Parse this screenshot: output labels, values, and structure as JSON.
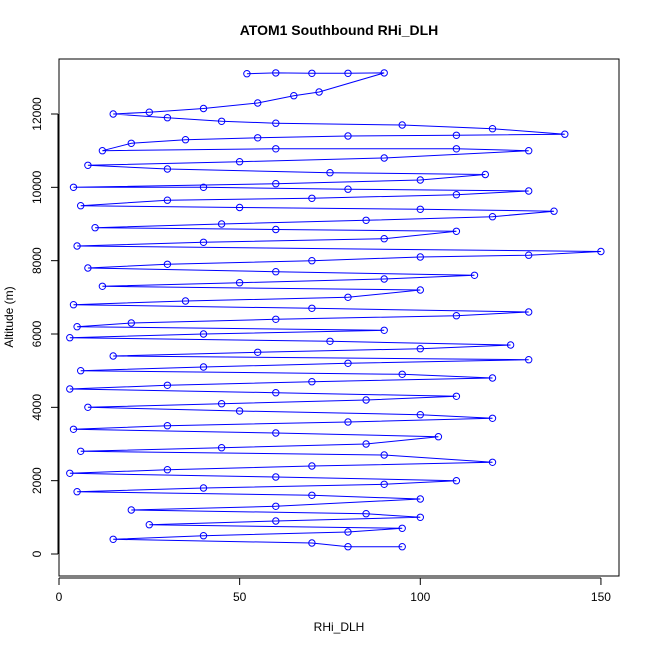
{
  "chart_data": {
    "type": "scatter",
    "title": "ATOM1 Southbound RHi_DLH",
    "xlabel": "RHi_DLH",
    "ylabel": "Altitude (m)",
    "xlim": [
      0,
      155
    ],
    "ylim": [
      -600,
      13500
    ],
    "xticks": [
      0,
      50,
      100,
      150
    ],
    "yticks": [
      0,
      2000,
      4000,
      6000,
      8000,
      10000,
      12000
    ],
    "grid": false,
    "legend": "none",
    "connected": true,
    "marker": "open-circle",
    "color": "#0000ff",
    "series": [
      {
        "values": [
          [
            52,
            13100
          ],
          [
            60,
            13120
          ],
          [
            70,
            13110
          ],
          [
            80,
            13110
          ],
          [
            90,
            13120
          ],
          [
            72,
            12600
          ],
          [
            65,
            12500
          ],
          [
            55,
            12300
          ],
          [
            40,
            12150
          ],
          [
            25,
            12050
          ],
          [
            15,
            12000
          ],
          [
            30,
            11900
          ],
          [
            45,
            11800
          ],
          [
            60,
            11750
          ],
          [
            95,
            11700
          ],
          [
            120,
            11600
          ],
          [
            140,
            11450
          ],
          [
            110,
            11420
          ],
          [
            80,
            11400
          ],
          [
            55,
            11350
          ],
          [
            35,
            11300
          ],
          [
            20,
            11200
          ],
          [
            12,
            11000
          ],
          [
            60,
            11050
          ],
          [
            110,
            11050
          ],
          [
            130,
            11000
          ],
          [
            90,
            10800
          ],
          [
            50,
            10700
          ],
          [
            8,
            10600
          ],
          [
            30,
            10500
          ],
          [
            75,
            10400
          ],
          [
            118,
            10350
          ],
          [
            100,
            10200
          ],
          [
            60,
            10100
          ],
          [
            4,
            10000
          ],
          [
            40,
            10000
          ],
          [
            80,
            9950
          ],
          [
            130,
            9900
          ],
          [
            110,
            9800
          ],
          [
            70,
            9700
          ],
          [
            30,
            9650
          ],
          [
            6,
            9500
          ],
          [
            50,
            9450
          ],
          [
            100,
            9400
          ],
          [
            137,
            9350
          ],
          [
            120,
            9200
          ],
          [
            85,
            9100
          ],
          [
            45,
            9000
          ],
          [
            10,
            8900
          ],
          [
            60,
            8850
          ],
          [
            110,
            8800
          ],
          [
            90,
            8600
          ],
          [
            40,
            8500
          ],
          [
            5,
            8400
          ],
          [
            150,
            8250
          ],
          [
            130,
            8150
          ],
          [
            100,
            8100
          ],
          [
            70,
            8000
          ],
          [
            30,
            7900
          ],
          [
            8,
            7800
          ],
          [
            60,
            7700
          ],
          [
            115,
            7600
          ],
          [
            90,
            7500
          ],
          [
            50,
            7400
          ],
          [
            12,
            7300
          ],
          [
            100,
            7200
          ],
          [
            80,
            7000
          ],
          [
            35,
            6900
          ],
          [
            4,
            6800
          ],
          [
            70,
            6700
          ],
          [
            130,
            6600
          ],
          [
            110,
            6500
          ],
          [
            60,
            6400
          ],
          [
            20,
            6300
          ],
          [
            5,
            6200
          ],
          [
            90,
            6100
          ],
          [
            40,
            6000
          ],
          [
            3,
            5900
          ],
          [
            75,
            5800
          ],
          [
            125,
            5700
          ],
          [
            100,
            5600
          ],
          [
            55,
            5500
          ],
          [
            15,
            5400
          ],
          [
            130,
            5300
          ],
          [
            80,
            5200
          ],
          [
            40,
            5100
          ],
          [
            6,
            5000
          ],
          [
            95,
            4900
          ],
          [
            120,
            4800
          ],
          [
            70,
            4700
          ],
          [
            30,
            4600
          ],
          [
            3,
            4500
          ],
          [
            60,
            4400
          ],
          [
            110,
            4300
          ],
          [
            85,
            4200
          ],
          [
            45,
            4100
          ],
          [
            8,
            4000
          ],
          [
            50,
            3900
          ],
          [
            100,
            3800
          ],
          [
            120,
            3700
          ],
          [
            80,
            3600
          ],
          [
            30,
            3500
          ],
          [
            4,
            3400
          ],
          [
            60,
            3300
          ],
          [
            105,
            3200
          ],
          [
            85,
            3000
          ],
          [
            45,
            2900
          ],
          [
            6,
            2800
          ],
          [
            90,
            2700
          ],
          [
            120,
            2500
          ],
          [
            70,
            2400
          ],
          [
            30,
            2300
          ],
          [
            3,
            2200
          ],
          [
            60,
            2100
          ],
          [
            110,
            2000
          ],
          [
            90,
            1900
          ],
          [
            40,
            1800
          ],
          [
            5,
            1700
          ],
          [
            70,
            1600
          ],
          [
            100,
            1500
          ],
          [
            60,
            1300
          ],
          [
            20,
            1200
          ],
          [
            85,
            1100
          ],
          [
            100,
            1000
          ],
          [
            60,
            900
          ],
          [
            25,
            800
          ],
          [
            95,
            700
          ],
          [
            80,
            600
          ],
          [
            40,
            500
          ],
          [
            15,
            400
          ],
          [
            70,
            300
          ],
          [
            80,
            200
          ],
          [
            95,
            200
          ]
        ]
      }
    ]
  }
}
